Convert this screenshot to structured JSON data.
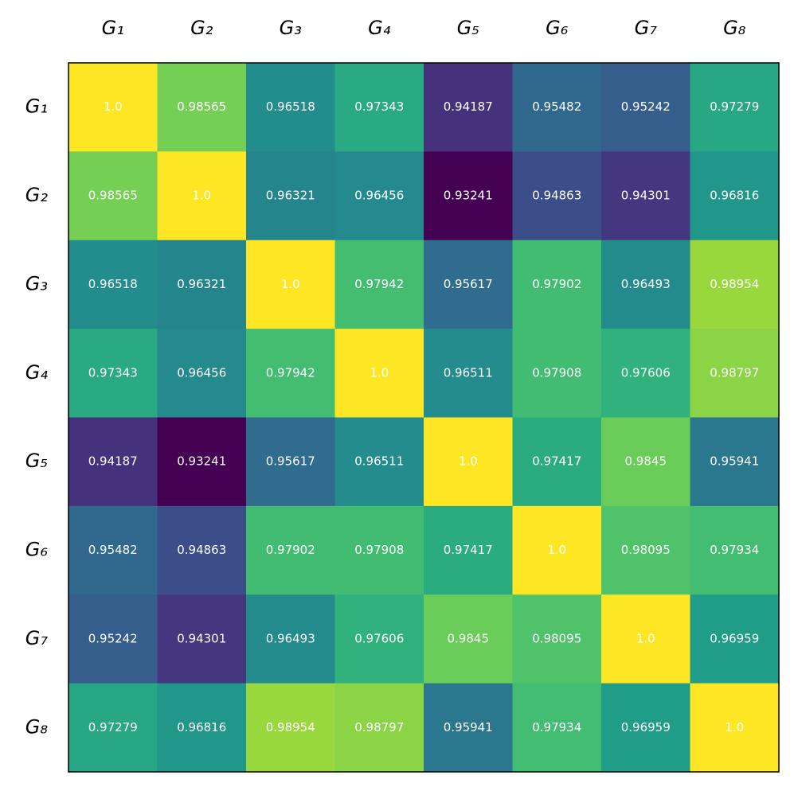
{
  "chart_data": {
    "type": "heatmap",
    "colormap": "viridis",
    "categories": [
      "G₁",
      "G₂",
      "G₃",
      "G₄",
      "G₅",
      "G₆",
      "G₇",
      "G₈"
    ],
    "row_categories": [
      "G₁",
      "G₂",
      "G₃",
      "G₄",
      "G₅",
      "G₆",
      "G₇",
      "G₈"
    ],
    "values": [
      [
        1.0,
        0.98565,
        0.96518,
        0.97343,
        0.94187,
        0.95482,
        0.95242,
        0.97279
      ],
      [
        0.98565,
        1.0,
        0.96321,
        0.96456,
        0.93241,
        0.94863,
        0.94301,
        0.96816
      ],
      [
        0.96518,
        0.96321,
        1.0,
        0.97942,
        0.95617,
        0.97902,
        0.96493,
        0.98954
      ],
      [
        0.97343,
        0.96456,
        0.97942,
        1.0,
        0.96511,
        0.97908,
        0.97606,
        0.98797
      ],
      [
        0.94187,
        0.93241,
        0.95617,
        0.96511,
        1.0,
        0.97417,
        0.9845,
        0.95941
      ],
      [
        0.95482,
        0.94863,
        0.97902,
        0.97908,
        0.97417,
        1.0,
        0.98095,
        0.97934
      ],
      [
        0.95242,
        0.94301,
        0.96493,
        0.97606,
        0.9845,
        0.98095,
        1.0,
        0.96959
      ],
      [
        0.97279,
        0.96816,
        0.98954,
        0.98797,
        0.95941,
        0.97934,
        0.96959,
        1.0
      ]
    ],
    "value_labels": [
      [
        "1.0",
        "0.98565",
        "0.96518",
        "0.97343",
        "0.94187",
        "0.95482",
        "0.95242",
        "0.97279"
      ],
      [
        "0.98565",
        "1.0",
        "0.96321",
        "0.96456",
        "0.93241",
        "0.94863",
        "0.94301",
        "0.96816"
      ],
      [
        "0.96518",
        "0.96321",
        "1.0",
        "0.97942",
        "0.95617",
        "0.97902",
        "0.96493",
        "0.98954"
      ],
      [
        "0.97343",
        "0.96456",
        "0.97942",
        "1.0",
        "0.96511",
        "0.97908",
        "0.97606",
        "0.98797"
      ],
      [
        "0.94187",
        "0.93241",
        "0.95617",
        "0.96511",
        "1.0",
        "0.97417",
        "0.9845",
        "0.95941"
      ],
      [
        "0.95482",
        "0.94863",
        "0.97902",
        "0.97908",
        "0.97417",
        "1.0",
        "0.98095",
        "0.97934"
      ],
      [
        "0.95242",
        "0.94301",
        "0.96493",
        "0.97606",
        "0.9845",
        "0.98095",
        "1.0",
        "0.96959"
      ],
      [
        "0.97279",
        "0.96816",
        "0.98954",
        "0.98797",
        "0.95941",
        "0.97934",
        "0.96959",
        "1.0"
      ]
    ]
  }
}
